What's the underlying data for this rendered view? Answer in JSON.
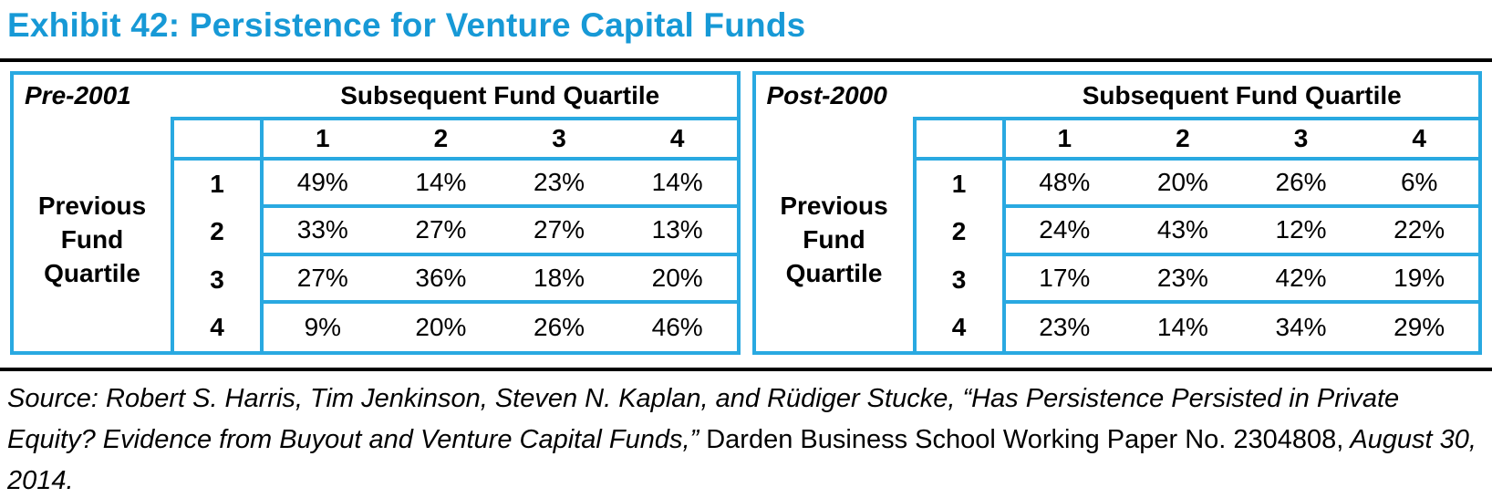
{
  "title": "Exhibit 42: Persistence for Venture Capital Funds",
  "colors": {
    "title_blue": "#1799D6",
    "table_border_blue": "#29A9E1",
    "rule_black": "#000000"
  },
  "tables": [
    {
      "period_label": "Pre-2001",
      "column_group_header": "Subsequent Fund Quartile",
      "row_group_header": "Previous\nFund\nQuartile",
      "column_headers": [
        "1",
        "2",
        "3",
        "4"
      ],
      "rows": [
        {
          "label": "1",
          "values": [
            "49%",
            "14%",
            "23%",
            "14%"
          ]
        },
        {
          "label": "2",
          "values": [
            "33%",
            "27%",
            "27%",
            "13%"
          ]
        },
        {
          "label": "3",
          "values": [
            "27%",
            "36%",
            "18%",
            "20%"
          ]
        },
        {
          "label": "4",
          "values": [
            "9%",
            "20%",
            "26%",
            "46%"
          ]
        }
      ]
    },
    {
      "period_label": "Post-2000",
      "column_group_header": "Subsequent Fund Quartile",
      "row_group_header": "Previous\nFund\nQuartile",
      "column_headers": [
        "1",
        "2",
        "3",
        "4"
      ],
      "rows": [
        {
          "label": "1",
          "values": [
            "48%",
            "20%",
            "26%",
            "6%"
          ]
        },
        {
          "label": "2",
          "values": [
            "24%",
            "43%",
            "12%",
            "22%"
          ]
        },
        {
          "label": "3",
          "values": [
            "17%",
            "23%",
            "42%",
            "19%"
          ]
        },
        {
          "label": "4",
          "values": [
            "23%",
            "14%",
            "34%",
            "29%"
          ]
        }
      ]
    }
  ],
  "source": {
    "segments": [
      {
        "text": "Source: Robert S. Harris, Tim Jenkinson, Steven N. Kaplan, and Rüdiger Stucke, “Has Persistence Persisted in Private Equity? Evidence from Buyout and Venture Capital Funds,” ",
        "style": "italic"
      },
      {
        "text": "Darden Business School Working Paper No. 2304808,",
        "style": "regular"
      },
      {
        "text": " August 30, 2014.",
        "style": "italic"
      }
    ]
  }
}
